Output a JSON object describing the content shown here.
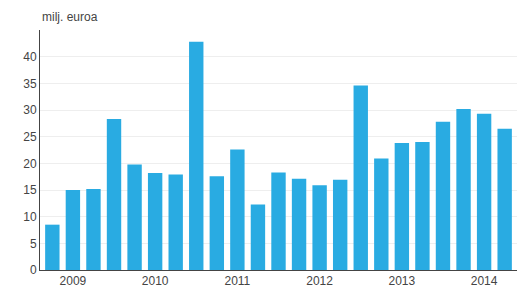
{
  "chart_data": {
    "type": "bar",
    "categories": [
      null,
      "2009",
      null,
      null,
      null,
      "2010",
      null,
      null,
      null,
      "2011",
      null,
      null,
      null,
      "2012",
      null,
      null,
      null,
      "2013",
      null,
      null,
      null,
      "2014",
      null
    ],
    "values": [
      8.5,
      15.0,
      15.2,
      28.3,
      19.8,
      18.2,
      17.9,
      42.8,
      17.6,
      22.6,
      12.3,
      18.3,
      17.1,
      15.9,
      16.9,
      34.6,
      20.9,
      23.8,
      24.0,
      27.8,
      30.2,
      29.3,
      26.5
    ],
    "color": "#29abe2",
    "ylabel": "milj. euroa",
    "ylim": [
      0,
      45
    ],
    "yticks": [
      0,
      5,
      10,
      15,
      20,
      25,
      30,
      35,
      40
    ],
    "grid": true
  }
}
